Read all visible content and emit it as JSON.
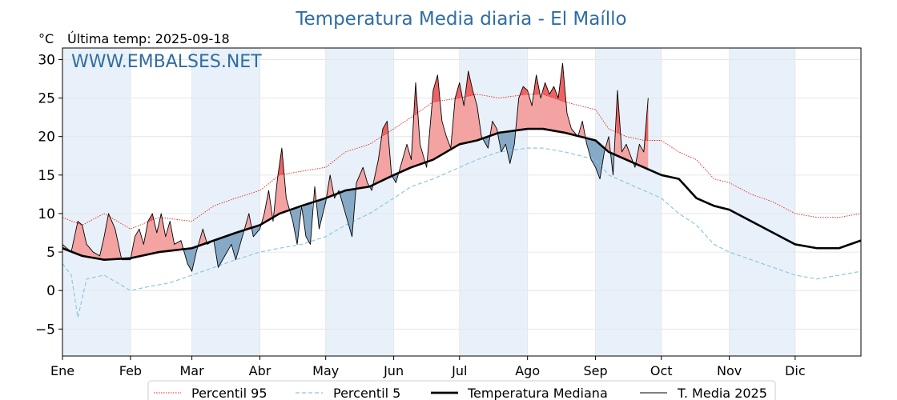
{
  "chart_data": {
    "type": "line",
    "title": "Temperatura Media diaria - El Maíllo",
    "unit": "°C",
    "last_reading": "Última temp: 2025-09-18",
    "watermark": "WWW.EMBALSES.NET",
    "ylim": [
      -8.5,
      31.5
    ],
    "yticks": [
      -5,
      0,
      5,
      10,
      15,
      20,
      25,
      30
    ],
    "yticklabels": [
      "−5",
      "0",
      "5",
      "10",
      "15",
      "20",
      "25",
      "30"
    ],
    "months": [
      "Ene",
      "Feb",
      "Mar",
      "Abr",
      "May",
      "Jun",
      "Jul",
      "Ago",
      "Sep",
      "Oct",
      "Nov",
      "Dic"
    ],
    "month_start_days": [
      1,
      32,
      60,
      91,
      121,
      152,
      182,
      213,
      244,
      274,
      305,
      335
    ],
    "grid": true,
    "legend_position": "bottom",
    "colors": {
      "p95": "#e8251b",
      "p5": "#8ec8de",
      "median": "#000000",
      "mean2025": "#000000",
      "above": "#f4a3a3",
      "above_p95": "#ee6262",
      "below": "#86a9c6",
      "band": "#e8f1fa"
    },
    "series": [
      {
        "name": "Percentil 95",
        "style": "dotted",
        "points": [
          [
            1,
            9.5
          ],
          [
            10,
            8.5
          ],
          [
            20,
            10
          ],
          [
            32,
            8
          ],
          [
            45,
            9.5
          ],
          [
            60,
            9
          ],
          [
            70,
            11
          ],
          [
            80,
            12
          ],
          [
            91,
            13
          ],
          [
            100,
            15
          ],
          [
            110,
            15.5
          ],
          [
            121,
            16
          ],
          [
            130,
            18
          ],
          [
            141,
            19
          ],
          [
            152,
            21
          ],
          [
            160,
            22.5
          ],
          [
            170,
            24.5
          ],
          [
            182,
            25
          ],
          [
            190,
            25.5
          ],
          [
            200,
            25
          ],
          [
            213,
            25.5
          ],
          [
            220,
            25.5
          ],
          [
            230,
            24.5
          ],
          [
            244,
            23.5
          ],
          [
            250,
            21
          ],
          [
            258,
            20
          ],
          [
            266,
            19.5
          ],
          [
            274,
            19.5
          ],
          [
            282,
            18
          ],
          [
            290,
            17
          ],
          [
            298,
            14.5
          ],
          [
            305,
            14
          ],
          [
            315,
            12.5
          ],
          [
            325,
            11.5
          ],
          [
            335,
            10
          ],
          [
            345,
            9.5
          ],
          [
            355,
            9.5
          ],
          [
            365,
            10
          ]
        ]
      },
      {
        "name": "Percentil 5",
        "style": "dashed",
        "points": [
          [
            1,
            3.5
          ],
          [
            5,
            2
          ],
          [
            8,
            -3.5
          ],
          [
            12,
            1.5
          ],
          [
            20,
            2
          ],
          [
            32,
            0
          ],
          [
            40,
            0.5
          ],
          [
            50,
            1
          ],
          [
            60,
            2
          ],
          [
            70,
            3
          ],
          [
            80,
            4
          ],
          [
            91,
            5
          ],
          [
            100,
            5.5
          ],
          [
            110,
            6
          ],
          [
            121,
            7
          ],
          [
            130,
            8.5
          ],
          [
            141,
            10
          ],
          [
            152,
            12
          ],
          [
            160,
            13.5
          ],
          [
            170,
            14.5
          ],
          [
            182,
            16
          ],
          [
            190,
            17
          ],
          [
            200,
            18
          ],
          [
            213,
            18.5
          ],
          [
            220,
            18.5
          ],
          [
            230,
            18
          ],
          [
            244,
            17
          ],
          [
            250,
            15
          ],
          [
            258,
            14
          ],
          [
            266,
            13
          ],
          [
            274,
            12
          ],
          [
            282,
            10
          ],
          [
            290,
            8.5
          ],
          [
            298,
            6
          ],
          [
            305,
            5
          ],
          [
            315,
            4
          ],
          [
            325,
            3
          ],
          [
            335,
            2
          ],
          [
            345,
            1.5
          ],
          [
            355,
            2
          ],
          [
            365,
            2.5
          ]
        ]
      },
      {
        "name": "Temperatura Mediana",
        "style": "solid-thick",
        "points": [
          [
            1,
            5.5
          ],
          [
            10,
            4.5
          ],
          [
            20,
            4
          ],
          [
            32,
            4.2
          ],
          [
            45,
            5
          ],
          [
            60,
            5.5
          ],
          [
            70,
            6.5
          ],
          [
            80,
            7.5
          ],
          [
            91,
            8.5
          ],
          [
            100,
            10
          ],
          [
            110,
            11
          ],
          [
            121,
            12
          ],
          [
            130,
            13
          ],
          [
            141,
            13.5
          ],
          [
            152,
            15
          ],
          [
            160,
            16
          ],
          [
            170,
            17
          ],
          [
            182,
            19
          ],
          [
            190,
            19.5
          ],
          [
            200,
            20.5
          ],
          [
            213,
            21
          ],
          [
            220,
            21
          ],
          [
            230,
            20.5
          ],
          [
            244,
            19.5
          ],
          [
            250,
            18
          ],
          [
            258,
            17
          ],
          [
            266,
            16
          ],
          [
            274,
            15
          ],
          [
            282,
            14.5
          ],
          [
            290,
            12
          ],
          [
            298,
            11
          ],
          [
            305,
            10.5
          ],
          [
            315,
            9
          ],
          [
            325,
            7.5
          ],
          [
            335,
            6
          ],
          [
            345,
            5.5
          ],
          [
            355,
            5.5
          ],
          [
            365,
            6.5
          ]
        ]
      },
      {
        "name": "T. Media 2025",
        "style": "solid-thin",
        "points": [
          [
            1,
            6
          ],
          [
            5,
            5
          ],
          [
            8,
            9
          ],
          [
            10,
            8.5
          ],
          [
            12,
            6
          ],
          [
            15,
            5
          ],
          [
            18,
            4.5
          ],
          [
            20,
            7
          ],
          [
            22,
            10
          ],
          [
            25,
            8
          ],
          [
            28,
            4
          ],
          [
            32,
            4
          ],
          [
            34,
            7
          ],
          [
            36,
            8
          ],
          [
            38,
            6
          ],
          [
            40,
            9
          ],
          [
            42,
            10
          ],
          [
            44,
            7.5
          ],
          [
            46,
            10
          ],
          [
            48,
            7
          ],
          [
            50,
            9
          ],
          [
            52,
            6
          ],
          [
            55,
            6.5
          ],
          [
            58,
            3.5
          ],
          [
            60,
            2.5
          ],
          [
            62,
            5
          ],
          [
            65,
            8
          ],
          [
            67,
            6
          ],
          [
            70,
            6.5
          ],
          [
            72,
            3
          ],
          [
            75,
            4.5
          ],
          [
            78,
            6
          ],
          [
            80,
            4
          ],
          [
            84,
            8
          ],
          [
            86,
            10
          ],
          [
            88,
            7
          ],
          [
            91,
            8
          ],
          [
            93,
            10
          ],
          [
            95,
            13
          ],
          [
            97,
            9
          ],
          [
            99,
            14.5
          ],
          [
            101,
            18.5
          ],
          [
            103,
            12
          ],
          [
            106,
            9
          ],
          [
            108,
            6
          ],
          [
            110,
            11
          ],
          [
            112,
            7
          ],
          [
            114,
            6
          ],
          [
            116,
            13.5
          ],
          [
            118,
            8
          ],
          [
            121,
            11.5
          ],
          [
            123,
            15
          ],
          [
            125,
            12
          ],
          [
            127,
            13
          ],
          [
            130,
            10
          ],
          [
            133,
            7
          ],
          [
            135,
            14
          ],
          [
            138,
            16
          ],
          [
            140,
            14
          ],
          [
            142,
            13
          ],
          [
            145,
            17
          ],
          [
            147,
            21
          ],
          [
            149,
            22
          ],
          [
            151,
            15
          ],
          [
            153,
            14
          ],
          [
            155,
            16
          ],
          [
            158,
            19
          ],
          [
            160,
            17
          ],
          [
            162,
            27
          ],
          [
            164,
            19
          ],
          [
            167,
            16
          ],
          [
            170,
            26
          ],
          [
            172,
            28
          ],
          [
            174,
            22
          ],
          [
            176,
            20
          ],
          [
            178,
            18.5
          ],
          [
            180,
            25
          ],
          [
            182,
            27
          ],
          [
            184,
            24
          ],
          [
            186,
            28.5
          ],
          [
            188,
            26
          ],
          [
            190,
            24
          ],
          [
            192,
            20
          ],
          [
            195,
            18.5
          ],
          [
            197,
            22
          ],
          [
            199,
            21
          ],
          [
            201,
            18
          ],
          [
            203,
            19
          ],
          [
            205,
            16.5
          ],
          [
            207,
            19
          ],
          [
            209,
            25
          ],
          [
            211,
            26.5
          ],
          [
            213,
            26
          ],
          [
            215,
            24
          ],
          [
            217,
            28
          ],
          [
            219,
            25
          ],
          [
            221,
            27
          ],
          [
            223,
            25.5
          ],
          [
            225,
            26.5
          ],
          [
            227,
            25
          ],
          [
            229,
            29.5
          ],
          [
            231,
            23
          ],
          [
            233,
            21
          ],
          [
            236,
            20
          ],
          [
            238,
            22
          ],
          [
            240,
            19
          ],
          [
            242,
            17
          ],
          [
            244,
            16
          ],
          [
            246,
            14.5
          ],
          [
            248,
            18
          ],
          [
            250,
            20
          ],
          [
            252,
            15
          ],
          [
            254,
            26
          ],
          [
            256,
            18
          ],
          [
            258,
            19
          ],
          [
            260,
            17.5
          ],
          [
            262,
            16
          ],
          [
            264,
            19
          ],
          [
            266,
            18
          ],
          [
            268,
            25
          ]
        ]
      }
    ]
  },
  "legend": {
    "items": [
      "Percentil 95",
      "Percentil 5",
      "Temperatura Mediana",
      "T. Media 2025"
    ]
  }
}
